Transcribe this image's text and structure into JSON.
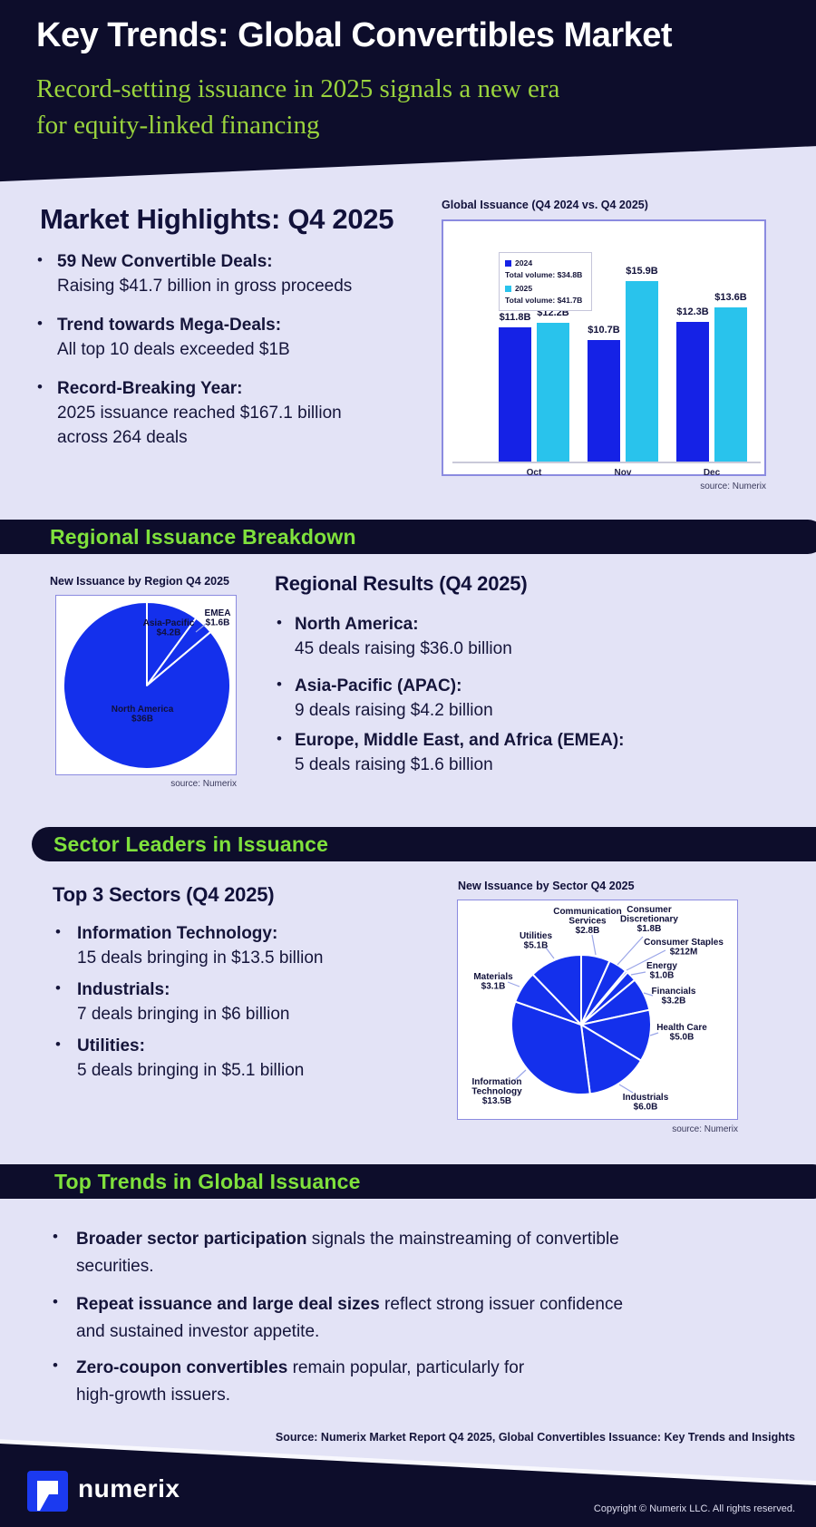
{
  "colors": {
    "navy": "#0D0D2B",
    "lavender": "#E3E3F6",
    "accent_green": "#7FE13C",
    "subtitle_green": "#9AD43D",
    "blue_2024": "#1522E6",
    "cyan_2025": "#29C3EC",
    "pie_blue": "#1430EC",
    "logo_blue": "#1B3AF0"
  },
  "header": {
    "title": "Key Trends: Global Convertibles Market",
    "subtitle_line1": "Record-setting issuance in 2025 signals a new era",
    "subtitle_line2": "for equity-linked financing"
  },
  "highlights": {
    "title": "Market Highlights: Q4 2025",
    "bullets": [
      {
        "label": "59 New Convertible Deals:",
        "desc": "Raising $41.7 billion in gross proceeds",
        "desc2": ""
      },
      {
        "label": "Trend towards Mega-Deals:",
        "desc": "All top 10 deals exceeded $1B",
        "desc2": ""
      },
      {
        "label": "Record-Breaking Year:",
        "desc": "2025 issuance reached $167.1 billion",
        "desc2": "across 264 deals"
      }
    ]
  },
  "banners": {
    "regional": "Regional Issuance Breakdown",
    "sector": "Sector Leaders in Issuance",
    "trends": "Top Trends in Global Issuance"
  },
  "regional": {
    "heading": "Regional Results (Q4 2025)",
    "bullets": [
      {
        "label": "North America:",
        "desc": "45 deals raising $36.0 billion"
      },
      {
        "label": "Asia-Pacific (APAC):",
        "desc": "9 deals raising $4.2 billion"
      },
      {
        "label": "Europe, Middle East, and Africa (EMEA):",
        "desc": "5 deals raising $1.6 billion"
      }
    ]
  },
  "sectors": {
    "heading": "Top 3 Sectors (Q4 2025)",
    "bullets": [
      {
        "label": "Information Technology:",
        "desc": "15 deals bringing in $13.5 billion"
      },
      {
        "label": "Industrials:",
        "desc": "7 deals bringing in $6 billion"
      },
      {
        "label": "Utilities:",
        "desc": "5 deals bringing in $5.1 billion"
      }
    ]
  },
  "trends": {
    "bullets": [
      {
        "bold": "Broader sector participation",
        "rest": " signals the mainstreaming of convertible",
        "rest2": "securities."
      },
      {
        "bold": "Repeat issuance and large deal sizes",
        "rest": " reflect strong issuer confidence",
        "rest2": "and sustained investor appetite."
      },
      {
        "bold": "Zero-coupon convertibles",
        "rest": " remain popular, particularly for",
        "rest2": "high-growth issuers."
      }
    ]
  },
  "source_line": "Source: Numerix Market Report Q4 2025, Global Convertibles Issuance: Key Trends and Insights",
  "footer": {
    "logo_text": "numerix",
    "copyright": "Copyright © Numerix LLC. All rights reserved."
  },
  "chart_data": [
    {
      "type": "bar",
      "title": "Global Issuance (Q4 2024 vs. Q4 2025)",
      "categories": [
        "Oct",
        "Nov",
        "Dec"
      ],
      "series": [
        {
          "name": "2024",
          "total_label": "Total volume: $34.8B",
          "values": [
            11.8,
            10.7,
            12.3
          ],
          "value_labels": [
            "$11.8B",
            "$10.7B",
            "$12.3B"
          ],
          "color": "#1522E6"
        },
        {
          "name": "2025",
          "total_label": "Total volume: $41.7B",
          "values": [
            12.2,
            15.9,
            13.6
          ],
          "value_labels": [
            "$12.2B",
            "$15.9B",
            "$13.6B"
          ],
          "color": "#29C3EC"
        }
      ],
      "unit": "USD billions",
      "legend_position": "top-left",
      "ylim": [
        0,
        21
      ],
      "source": "source: Numerix"
    },
    {
      "type": "pie",
      "title": "New Issuance by Region Q4 2025",
      "source": "source: Numerix",
      "unit": "USD billions",
      "slices": [
        {
          "name": "Asia-Pacific",
          "value": 4.2,
          "label_lines": [
            "Asia-Pacific",
            "$4.2B"
          ]
        },
        {
          "name": "EMEA",
          "value": 1.6,
          "label_lines": [
            "EMEA",
            "$1.6B"
          ]
        },
        {
          "name": "North America",
          "value": 36.0,
          "label_lines": [
            "North America",
            "$36B"
          ]
        }
      ]
    },
    {
      "type": "pie",
      "title": "New Issuance by Sector Q4 2025",
      "source": "source: Numerix",
      "unit": "USD billions",
      "slices": [
        {
          "name": "Communication Services",
          "value": 2.8,
          "label_lines": [
            "Communication",
            "Services",
            "$2.8B"
          ]
        },
        {
          "name": "Consumer Discretionary",
          "value": 1.8,
          "label_lines": [
            "Consumer",
            "Discretionary",
            "$1.8B"
          ]
        },
        {
          "name": "Consumer Staples",
          "value": 0.212,
          "label_lines": [
            "Consumer Staples",
            "$212M"
          ]
        },
        {
          "name": "Energy",
          "value": 1.0,
          "label_lines": [
            "Energy",
            "$1.0B"
          ]
        },
        {
          "name": "Financials",
          "value": 3.2,
          "label_lines": [
            "Financials",
            "$3.2B"
          ]
        },
        {
          "name": "Health Care",
          "value": 5.0,
          "label_lines": [
            "Health Care",
            "$5.0B"
          ]
        },
        {
          "name": "Industrials",
          "value": 6.0,
          "label_lines": [
            "Industrials",
            "$6.0B"
          ]
        },
        {
          "name": "Information Technology",
          "value": 13.5,
          "label_lines": [
            "Information",
            "Technology",
            "$13.5B"
          ]
        },
        {
          "name": "Materials",
          "value": 3.1,
          "label_lines": [
            "Materials",
            "$3.1B"
          ]
        },
        {
          "name": "Utilities",
          "value": 5.1,
          "label_lines": [
            "Utilities",
            "$5.1B"
          ]
        }
      ]
    }
  ]
}
